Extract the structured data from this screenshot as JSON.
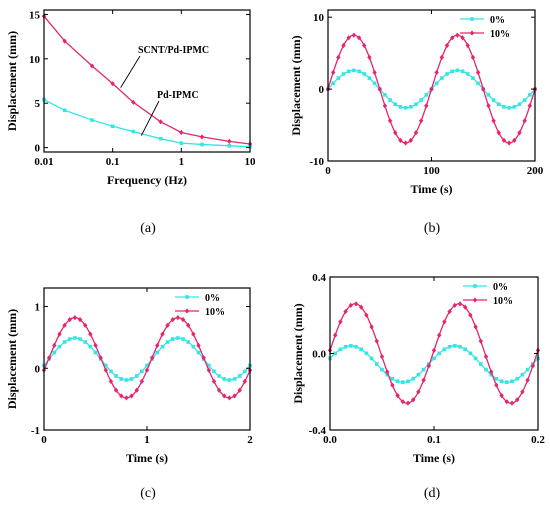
{
  "colors": {
    "series_0": "#33e6e6",
    "series_10": "#e6256f",
    "axis": "#000000"
  },
  "chart_data": [
    {
      "panel": "a",
      "type": "line",
      "caption": "(a)",
      "xlabel": "Frequency (Hz)",
      "ylabel": "Displacement (mm)",
      "xscale": "log",
      "xlim": [
        0.01,
        10
      ],
      "ylim": [
        -0.5,
        15.5
      ],
      "xticks": [
        0.01,
        0.1,
        1,
        10
      ],
      "xticklabels": [
        "0.01",
        "0.1",
        "1",
        "10"
      ],
      "yticks": [
        0,
        5,
        10,
        15
      ],
      "yticklabels": [
        "0",
        "5",
        "10",
        "15"
      ],
      "annotations": [
        {
          "text": "SCNT/Pd-IPMC",
          "series": 0,
          "x": 0.08
        },
        {
          "text": "Pd-IPMC",
          "series": 1,
          "x": 0.3
        }
      ],
      "series": [
        {
          "x": [
            0.01,
            0.02,
            0.05,
            0.1,
            0.2,
            0.5,
            1,
            2,
            5,
            10
          ],
          "values": [
            14.8,
            12.0,
            9.2,
            7.2,
            5.1,
            2.9,
            1.7,
            1.2,
            0.7,
            0.4
          ],
          "color": "#e6256f"
        },
        {
          "x": [
            0.01,
            0.02,
            0.05,
            0.1,
            0.2,
            0.5,
            1,
            2,
            5,
            10
          ],
          "values": [
            5.4,
            4.2,
            3.1,
            2.4,
            1.8,
            1.0,
            0.5,
            0.35,
            0.2,
            0.1
          ],
          "color": "#33e6e6"
        }
      ]
    },
    {
      "panel": "b",
      "type": "line",
      "caption": "(b)",
      "xlabel": "Time (s)",
      "ylabel": "Displacement (mm)",
      "xlim": [
        0,
        200
      ],
      "ylim": [
        -10,
        11
      ],
      "xticks": [
        0,
        100,
        200
      ],
      "xticklabels": [
        "0",
        "100",
        "200"
      ],
      "yticks": [
        -10,
        0,
        10
      ],
      "yticklabels": [
        "-10",
        "0",
        "10"
      ],
      "period": 100,
      "legend": [
        "0%",
        "10%"
      ],
      "series": [
        {
          "name": "0%",
          "amplitude": 2.6,
          "offset": 0.0,
          "phase": 25,
          "color": "#33e6e6"
        },
        {
          "name": "10%",
          "amplitude": 7.5,
          "offset": 0.0,
          "phase": 25,
          "color": "#e6256f"
        }
      ]
    },
    {
      "panel": "c",
      "type": "line",
      "caption": "(c)",
      "xlabel": "Time (s)",
      "ylabel": "Displacement (mm)",
      "xlim": [
        0,
        2
      ],
      "ylim": [
        -1,
        1.3
      ],
      "xticks": [
        0,
        1,
        2
      ],
      "xticklabels": [
        "0",
        "1",
        "2"
      ],
      "yticks": [
        -1,
        0,
        1
      ],
      "yticklabels": [
        "-1",
        "0",
        "1"
      ],
      "period": 1,
      "legend": [
        "0%",
        "10%"
      ],
      "series": [
        {
          "name": "0%",
          "amplitude": 0.34,
          "offset": 0.15,
          "phase": 0.3,
          "color": "#33e6e6"
        },
        {
          "name": "10%",
          "amplitude": 0.65,
          "offset": 0.17,
          "phase": 0.3,
          "color": "#e6256f"
        }
      ]
    },
    {
      "panel": "d",
      "type": "line",
      "caption": "(d)",
      "xlabel": "Time (s)",
      "ylabel": "Displacement (mm)",
      "xlim": [
        0,
        0.2
      ],
      "ylim": [
        -0.4,
        0.4
      ],
      "xticks": [
        0,
        0.1,
        0.2
      ],
      "xticklabels": [
        "0.0",
        "0.1",
        "0.2"
      ],
      "yticks": [
        -0.4,
        0,
        0.4
      ],
      "yticklabels": [
        "-0.4",
        "0.0",
        "0.4"
      ],
      "period": 0.1,
      "legend": [
        "0%",
        "10%"
      ],
      "series": [
        {
          "name": "0%",
          "amplitude": 0.095,
          "offset": -0.055,
          "phase": 0.02,
          "color": "#33e6e6"
        },
        {
          "name": "10%",
          "amplitude": 0.26,
          "offset": 0.0,
          "phase": 0.024,
          "color": "#e6256f"
        }
      ]
    }
  ]
}
